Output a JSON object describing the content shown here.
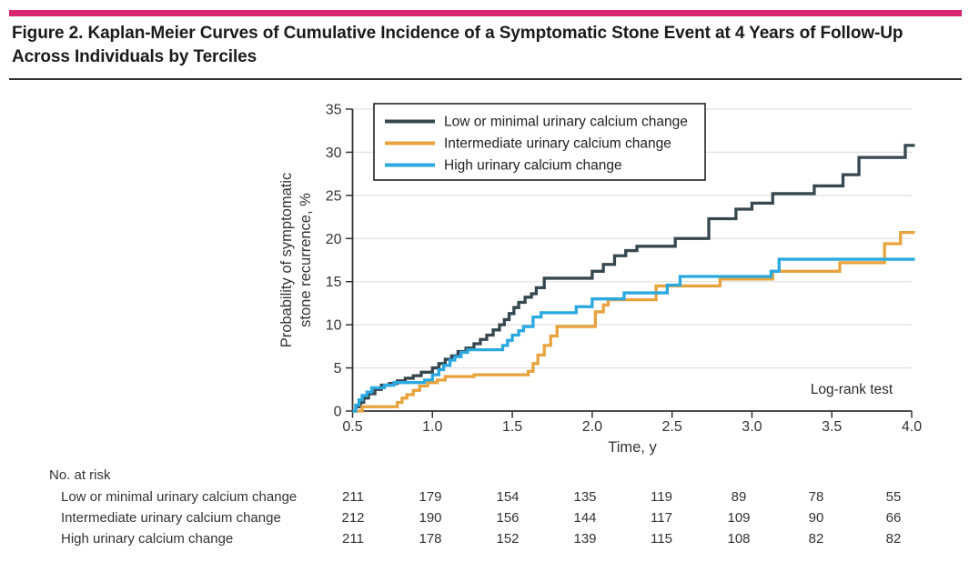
{
  "page": {
    "accent_bar_color": "#D6246E",
    "title_line1": "Figure 2. Kaplan-Meier Curves of Cumulative Incidence of a Symptomatic Stone Event at 4 Years of Follow-Up",
    "title_line2": "Across Individuals by Terciles"
  },
  "chart_data": {
    "type": "line",
    "subtype": "kaplan_meier_step",
    "title": "",
    "xlabel": "Time, y",
    "ylabel": "Probability of symptomatic stone recurrence, %",
    "ylabel_lines": [
      "Probability of symptomatic",
      "stone recurrence, %"
    ],
    "xlim": [
      0.5,
      4.0
    ],
    "ylim": [
      0,
      35
    ],
    "x_ticks": [
      "0.5",
      "1.0",
      "1.5",
      "2.0",
      "2.5",
      "3.0",
      "3.5",
      "4.0"
    ],
    "y_ticks": [
      "0",
      "5",
      "10",
      "15",
      "20",
      "25",
      "30",
      "35"
    ],
    "grid": "horizontal",
    "grid_color": "#E2E2E2",
    "axis_color": "#333333",
    "legend_position": "top-left-inside",
    "annotation": "Log-rank test",
    "series": [
      {
        "name": "Low or minimal urinary calcium change",
        "color": "#37474F",
        "points": [
          [
            0.5,
            0
          ],
          [
            0.52,
            0.5
          ],
          [
            0.55,
            1.0
          ],
          [
            0.57,
            1.5
          ],
          [
            0.6,
            2.0
          ],
          [
            0.64,
            2.5
          ],
          [
            0.68,
            3.0
          ],
          [
            0.73,
            3.2
          ],
          [
            0.78,
            3.5
          ],
          [
            0.83,
            3.8
          ],
          [
            0.88,
            4.1
          ],
          [
            0.93,
            4.5
          ],
          [
            1.0,
            5.0
          ],
          [
            1.04,
            5.5
          ],
          [
            1.08,
            6.0
          ],
          [
            1.12,
            6.4
          ],
          [
            1.16,
            6.9
          ],
          [
            1.21,
            7.3
          ],
          [
            1.26,
            7.8
          ],
          [
            1.3,
            8.3
          ],
          [
            1.34,
            8.8
          ],
          [
            1.38,
            9.4
          ],
          [
            1.42,
            10.0
          ],
          [
            1.45,
            10.6
          ],
          [
            1.48,
            11.3
          ],
          [
            1.51,
            12.0
          ],
          [
            1.54,
            12.6
          ],
          [
            1.58,
            13.2
          ],
          [
            1.62,
            13.6
          ],
          [
            1.65,
            14.3
          ],
          [
            1.7,
            15.4
          ],
          [
            2.0,
            16.2
          ],
          [
            2.07,
            17.0
          ],
          [
            2.14,
            18.0
          ],
          [
            2.21,
            18.6
          ],
          [
            2.28,
            19.1
          ],
          [
            2.52,
            20.0
          ],
          [
            2.73,
            22.3
          ],
          [
            2.9,
            23.4
          ],
          [
            3.0,
            24.1
          ],
          [
            3.13,
            25.2
          ],
          [
            3.39,
            26.1
          ],
          [
            3.57,
            27.4
          ],
          [
            3.67,
            29.4
          ],
          [
            3.96,
            30.8
          ],
          [
            4.02,
            30.8
          ]
        ]
      },
      {
        "name": "Intermediate urinary calcium change",
        "color": "#E8A33D",
        "points": [
          [
            0.5,
            0
          ],
          [
            0.56,
            0.5
          ],
          [
            0.78,
            1.0
          ],
          [
            0.81,
            1.5
          ],
          [
            0.84,
            1.9
          ],
          [
            0.88,
            2.4
          ],
          [
            0.92,
            2.9
          ],
          [
            0.97,
            3.3
          ],
          [
            1.03,
            3.6
          ],
          [
            1.08,
            4.0
          ],
          [
            1.26,
            4.2
          ],
          [
            1.6,
            4.6
          ],
          [
            1.63,
            5.5
          ],
          [
            1.66,
            6.5
          ],
          [
            1.7,
            7.6
          ],
          [
            1.74,
            8.7
          ],
          [
            1.78,
            9.8
          ],
          [
            2.02,
            11.5
          ],
          [
            2.07,
            12.3
          ],
          [
            2.1,
            12.9
          ],
          [
            2.4,
            14.5
          ],
          [
            2.8,
            15.3
          ],
          [
            3.13,
            16.2
          ],
          [
            3.55,
            17.2
          ],
          [
            3.83,
            19.4
          ],
          [
            3.93,
            20.7
          ],
          [
            4.02,
            20.7
          ]
        ]
      },
      {
        "name": "High urinary calcium change",
        "color": "#29A9E0",
        "points": [
          [
            0.5,
            0
          ],
          [
            0.52,
            0.7
          ],
          [
            0.54,
            1.3
          ],
          [
            0.56,
            1.8
          ],
          [
            0.59,
            2.2
          ],
          [
            0.62,
            2.7
          ],
          [
            0.7,
            3.0
          ],
          [
            0.76,
            3.3
          ],
          [
            0.95,
            3.6
          ],
          [
            1.0,
            4.2
          ],
          [
            1.04,
            4.8
          ],
          [
            1.07,
            5.3
          ],
          [
            1.11,
            5.9
          ],
          [
            1.14,
            6.3
          ],
          [
            1.18,
            6.8
          ],
          [
            1.22,
            7.1
          ],
          [
            1.44,
            7.6
          ],
          [
            1.47,
            8.2
          ],
          [
            1.5,
            8.8
          ],
          [
            1.54,
            9.3
          ],
          [
            1.57,
            9.8
          ],
          [
            1.63,
            10.9
          ],
          [
            1.68,
            11.4
          ],
          [
            1.9,
            12.1
          ],
          [
            2.0,
            13.0
          ],
          [
            2.2,
            13.7
          ],
          [
            2.47,
            14.6
          ],
          [
            2.55,
            15.6
          ],
          [
            3.12,
            16.2
          ],
          [
            3.17,
            17.6
          ],
          [
            4.02,
            17.6
          ]
        ]
      }
    ]
  },
  "risk_table": {
    "header": "No. at risk",
    "time_points": [
      0.5,
      1.0,
      1.5,
      2.0,
      2.5,
      3.0,
      3.5,
      4.0
    ],
    "rows": [
      {
        "label": "Low or minimal urinary calcium change",
        "counts": [
          "211",
          "179",
          "154",
          "135",
          "119",
          "89",
          "78",
          "55"
        ]
      },
      {
        "label": "Intermediate urinary calcium change",
        "counts": [
          "212",
          "190",
          "156",
          "144",
          "117",
          "109",
          "90",
          "66"
        ]
      },
      {
        "label": "High urinary calcium change",
        "counts": [
          "211",
          "178",
          "152",
          "139",
          "115",
          "108",
          "82",
          "82"
        ]
      }
    ]
  }
}
